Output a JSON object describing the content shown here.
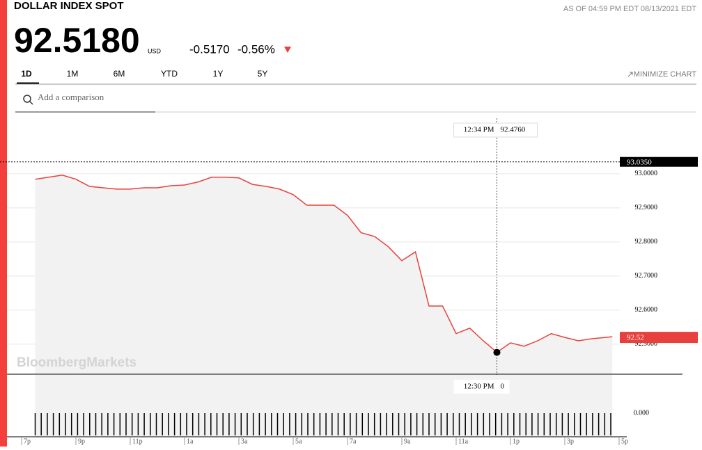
{
  "header": {
    "title": "DOLLAR INDEX SPOT",
    "as_of": "AS OF 04:59 PM EDT 08/13/2021 EDT",
    "price": "92.5180",
    "currency": "USD",
    "change": "-0.5170",
    "change_pct": "-0.56%"
  },
  "tabs": [
    "1D",
    "1M",
    "6M",
    "YTD",
    "1Y",
    "5Y"
  ],
  "active_tab": "1D",
  "minimize": "MINIMIZE CHART",
  "search_placeholder": "Add a comparison",
  "watermark": "BloombergMarkets",
  "chart_data": {
    "type": "line",
    "x": [
      19.5,
      20,
      20.5,
      21,
      21.5,
      22,
      22.5,
      23,
      23.5,
      24,
      24.5,
      25,
      25.5,
      26,
      26.5,
      27,
      27.5,
      28,
      28.5,
      29,
      29.5,
      30,
      30.5,
      31,
      31.5,
      32,
      32.5,
      33,
      33.5,
      34,
      34.5,
      35,
      35.5,
      36,
      36.5,
      37,
      37.5,
      38,
      38.5,
      39,
      39.5,
      40,
      40.5,
      40.75
    ],
    "series": [
      {
        "color": "#e8413d",
        "values": [
          92.984,
          92.99,
          92.996,
          92.984,
          92.963,
          92.959,
          92.955,
          92.955,
          92.959,
          92.959,
          92.965,
          92.967,
          92.976,
          92.99,
          92.99,
          92.988,
          92.969,
          92.963,
          92.955,
          92.939,
          92.908,
          92.908,
          92.908,
          92.878,
          92.827,
          92.816,
          92.786,
          92.745,
          92.771,
          92.612,
          92.612,
          92.531,
          92.547,
          92.51,
          92.476,
          92.504,
          92.494,
          92.51,
          92.531,
          92.52,
          92.51,
          92.516,
          92.52,
          92.522
        ]
      }
    ],
    "xlim": [
      19,
      41
    ],
    "xticks": [
      {
        "value": 19,
        "label": "7p"
      },
      {
        "value": 21,
        "label": "9p"
      },
      {
        "value": 23,
        "label": "11p"
      },
      {
        "value": 25,
        "label": "1a"
      },
      {
        "value": 27,
        "label": "3a"
      },
      {
        "value": 29,
        "label": "5a"
      },
      {
        "value": 31,
        "label": "7a"
      },
      {
        "value": 33,
        "label": "9a"
      },
      {
        "value": 35,
        "label": "11a"
      },
      {
        "value": 37,
        "label": "1p"
      },
      {
        "value": 39,
        "label": "3p"
      },
      {
        "value": 41,
        "label": "5p"
      }
    ],
    "ylim": [
      92.412,
      93.163
    ],
    "yticks": [
      {
        "value": 93,
        "label": "93.0000"
      },
      {
        "value": 92.9,
        "label": "92.9000"
      },
      {
        "value": 92.8,
        "label": "92.8000"
      },
      {
        "value": 92.7,
        "label": "92.7000"
      },
      {
        "value": 92.6,
        "label": "92.6000"
      },
      {
        "value": 92.5,
        "label": "92.5000"
      }
    ],
    "grid": true,
    "previous_close": {
      "value": 93.035,
      "label": "93.0350"
    },
    "last": {
      "value": 92.52,
      "label": "92.52"
    },
    "crosshair": {
      "time": "12:34 PM",
      "price": "92.4760",
      "volume_time": "12:30 PM",
      "volume": "0"
    },
    "volume_tick": "0.000"
  }
}
